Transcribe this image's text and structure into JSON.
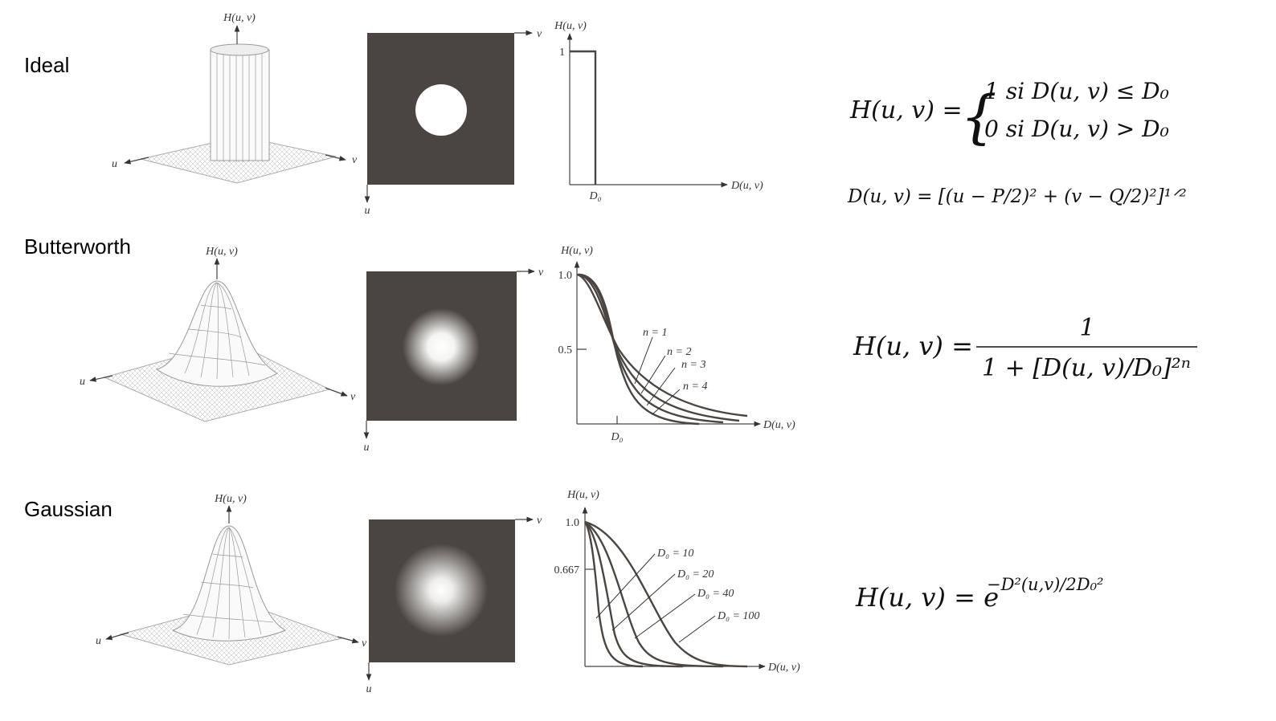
{
  "rows": [
    {
      "label": "Ideal",
      "surface": {
        "z": "H(u, v)",
        "u": "u",
        "v": "v"
      },
      "image": {
        "u": "u",
        "v": "v"
      },
      "plot": {
        "y_label": "H(u, v)",
        "x_label": "D(u, v)",
        "x_tick": "D₀",
        "y_ticks": [
          "1"
        ]
      },
      "equation": {
        "lhs": "H(u, v) =",
        "cases": [
          "1   si D(u, v) ≤ D₀",
          "0   si D(u, v) > D₀"
        ],
        "distance": "D(u, v) = [(u − P/2)² + (v − Q/2)²]¹ᐟ²"
      }
    },
    {
      "label": "Butterworth",
      "surface": {
        "z": "H(u, v)",
        "u": "u",
        "v": "v"
      },
      "image": {
        "u": "u",
        "v": "v"
      },
      "plot": {
        "y_label": "H(u, v)",
        "x_label": "D(u, v)",
        "x_tick": "D₀",
        "y_ticks": [
          "1.0",
          "0.5"
        ],
        "curve_labels": [
          "n = 1",
          "n = 2",
          "n = 3",
          "n = 4"
        ]
      },
      "equation": {
        "lhs": "H(u, v) =",
        "numerator": "1",
        "denominator": "1 + [D(u, v)/D₀]²ⁿ"
      }
    },
    {
      "label": "Gaussian",
      "surface": {
        "z": "H(u, v)",
        "u": "u",
        "v": "v"
      },
      "image": {
        "u": "u",
        "v": "v"
      },
      "plot": {
        "y_label": "H(u, v)",
        "x_label": "D(u, v)",
        "y_ticks": [
          "1.0",
          "0.667"
        ],
        "curve_labels": [
          "D₀ = 10",
          "D₀ = 20",
          "D₀ = 40",
          "D₀ = 100"
        ]
      },
      "equation": {
        "lhs": "H(u, v) = e",
        "exponent": "−D²(u,v)/2D₀²"
      }
    }
  ]
}
